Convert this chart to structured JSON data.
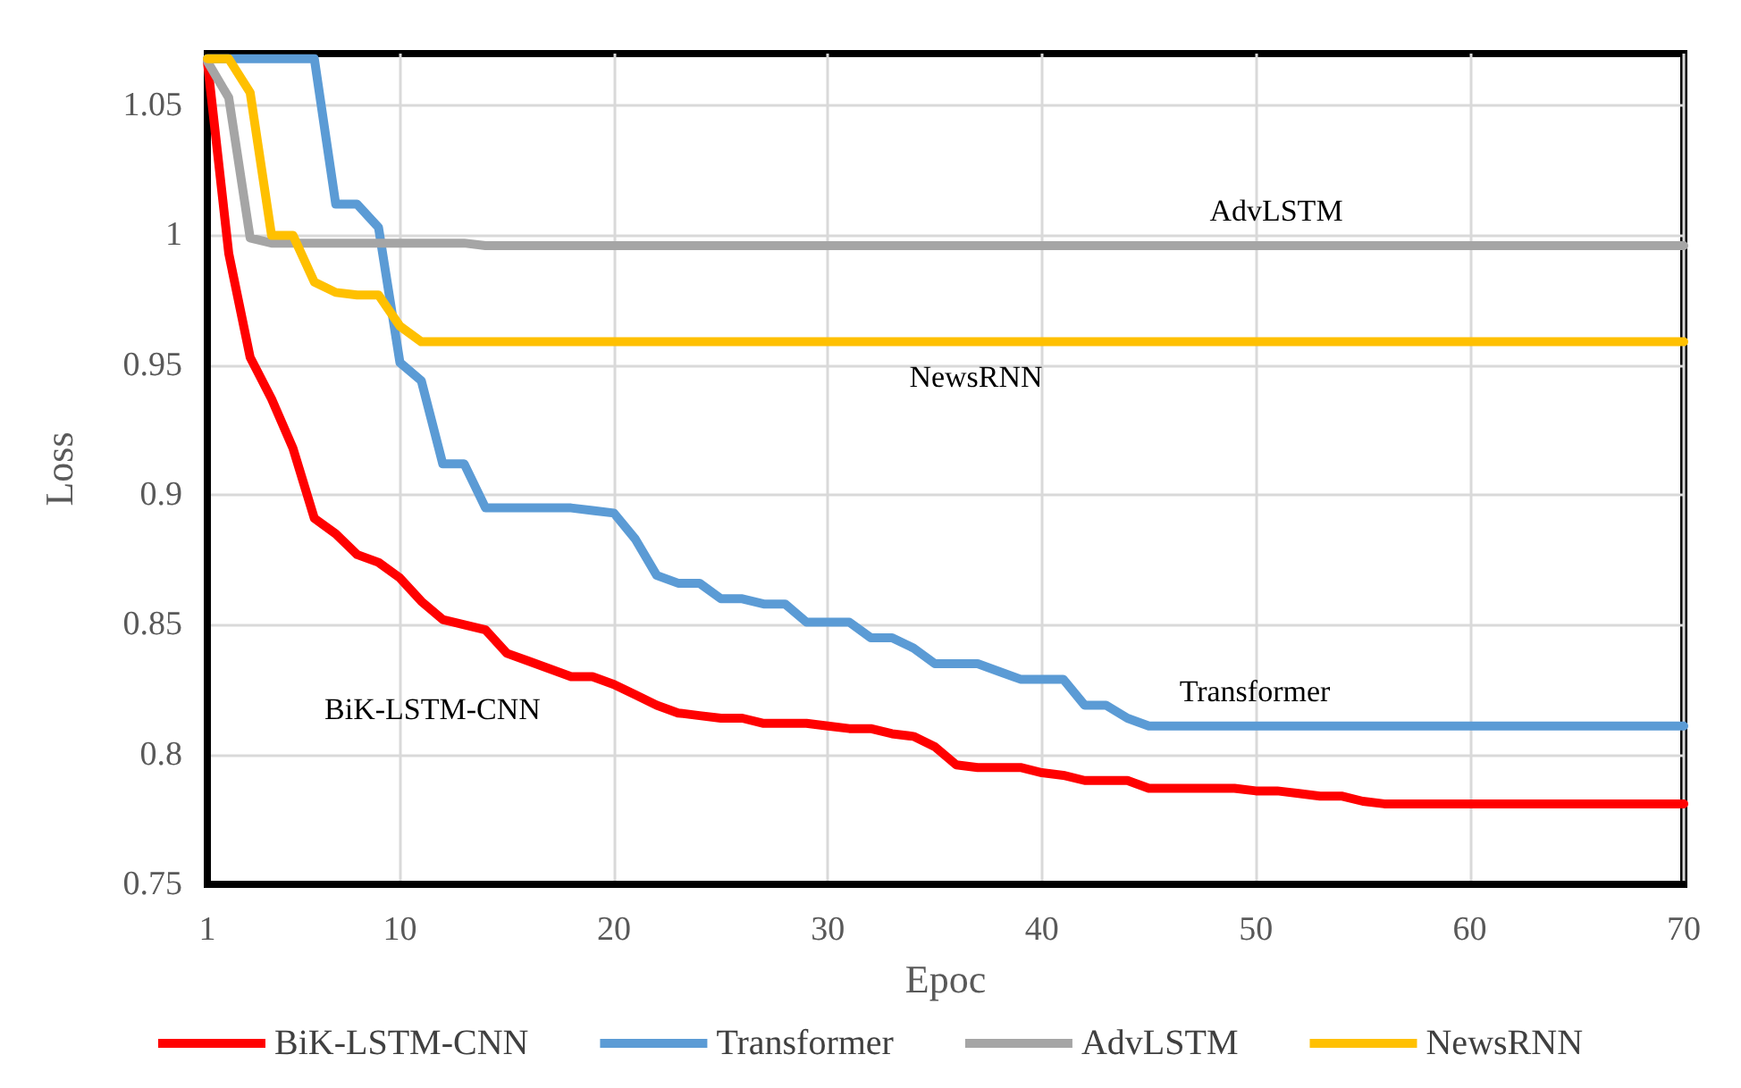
{
  "chart_data": {
    "type": "line",
    "xlabel": "Epoc",
    "ylabel": "Loss",
    "x": [
      1,
      2,
      3,
      4,
      5,
      6,
      7,
      8,
      9,
      10,
      11,
      12,
      13,
      14,
      15,
      16,
      17,
      18,
      19,
      20,
      21,
      22,
      23,
      24,
      25,
      26,
      27,
      28,
      29,
      30,
      31,
      32,
      33,
      34,
      35,
      36,
      37,
      38,
      39,
      40,
      41,
      42,
      43,
      44,
      45,
      46,
      47,
      48,
      49,
      50,
      51,
      52,
      53,
      54,
      55,
      56,
      57,
      58,
      59,
      60,
      61,
      62,
      63,
      64,
      65,
      66,
      67,
      68,
      69,
      70
    ],
    "series": [
      {
        "name": "BiK-LSTM-CNN",
        "color": "#ff0000",
        "values": [
          1.067,
          0.993,
          0.953,
          0.937,
          0.918,
          0.891,
          0.885,
          0.877,
          0.874,
          0.868,
          0.859,
          0.852,
          0.85,
          0.848,
          0.839,
          0.836,
          0.833,
          0.83,
          0.83,
          0.827,
          0.823,
          0.819,
          0.816,
          0.815,
          0.814,
          0.814,
          0.812,
          0.812,
          0.812,
          0.811,
          0.81,
          0.81,
          0.808,
          0.807,
          0.803,
          0.796,
          0.795,
          0.795,
          0.795,
          0.793,
          0.792,
          0.79,
          0.79,
          0.79,
          0.787,
          0.787,
          0.787,
          0.787,
          0.787,
          0.786,
          0.786,
          0.785,
          0.784,
          0.784,
          0.782,
          0.781,
          0.781,
          0.781,
          0.781,
          0.781,
          0.781,
          0.781,
          0.781,
          0.781,
          0.781,
          0.781,
          0.781,
          0.781,
          0.781,
          0.781
        ]
      },
      {
        "name": "Transformer",
        "color": "#5b9bd5",
        "values": [
          1.068,
          1.068,
          1.068,
          1.068,
          1.068,
          1.068,
          1.012,
          1.012,
          1.003,
          0.951,
          0.944,
          0.912,
          0.912,
          0.895,
          0.895,
          0.895,
          0.895,
          0.895,
          0.894,
          0.893,
          0.883,
          0.869,
          0.866,
          0.866,
          0.86,
          0.86,
          0.858,
          0.858,
          0.851,
          0.851,
          0.851,
          0.845,
          0.845,
          0.841,
          0.835,
          0.835,
          0.835,
          0.832,
          0.829,
          0.829,
          0.829,
          0.819,
          0.819,
          0.814,
          0.811,
          0.811,
          0.811,
          0.811,
          0.811,
          0.811,
          0.811,
          0.811,
          0.811,
          0.811,
          0.811,
          0.811,
          0.811,
          0.811,
          0.811,
          0.811,
          0.811,
          0.811,
          0.811,
          0.811,
          0.811,
          0.811,
          0.811,
          0.811,
          0.811,
          0.811
        ]
      },
      {
        "name": "AdvLSTM",
        "color": "#a5a5a5",
        "values": [
          1.067,
          1.053,
          0.999,
          0.997,
          0.997,
          0.997,
          0.997,
          0.997,
          0.997,
          0.997,
          0.997,
          0.997,
          0.997,
          0.996,
          0.996,
          0.996,
          0.996,
          0.996,
          0.996,
          0.996,
          0.996,
          0.996,
          0.996,
          0.996,
          0.996,
          0.996,
          0.996,
          0.996,
          0.996,
          0.996,
          0.996,
          0.996,
          0.996,
          0.996,
          0.996,
          0.996,
          0.996,
          0.996,
          0.996,
          0.996,
          0.996,
          0.996,
          0.996,
          0.996,
          0.996,
          0.996,
          0.996,
          0.996,
          0.996,
          0.996,
          0.996,
          0.996,
          0.996,
          0.996,
          0.996,
          0.996,
          0.996,
          0.996,
          0.996,
          0.996,
          0.996,
          0.996,
          0.996,
          0.996,
          0.996,
          0.996,
          0.996,
          0.996,
          0.996,
          0.996
        ]
      },
      {
        "name": "NewsRNN",
        "color": "#ffc000",
        "values": [
          1.068,
          1.068,
          1.055,
          1.0,
          1.0,
          0.982,
          0.978,
          0.977,
          0.977,
          0.965,
          0.959,
          0.959,
          0.959,
          0.959,
          0.959,
          0.959,
          0.959,
          0.959,
          0.959,
          0.959,
          0.959,
          0.959,
          0.959,
          0.959,
          0.959,
          0.959,
          0.959,
          0.959,
          0.959,
          0.959,
          0.959,
          0.959,
          0.959,
          0.959,
          0.959,
          0.959,
          0.959,
          0.959,
          0.959,
          0.959,
          0.959,
          0.959,
          0.959,
          0.959,
          0.959,
          0.959,
          0.959,
          0.959,
          0.959,
          0.959,
          0.959,
          0.959,
          0.959,
          0.959,
          0.959,
          0.959,
          0.959,
          0.959,
          0.959,
          0.959,
          0.959,
          0.959,
          0.959,
          0.959,
          0.959,
          0.959,
          0.959,
          0.959,
          0.959,
          0.959
        ]
      }
    ],
    "annotations": [
      "AdvLSTM",
      "NewsRNN",
      "Transformer",
      "BiK-LSTM-CNN"
    ],
    "xlim": [
      1,
      70
    ],
    "xticks": [
      1,
      10,
      20,
      30,
      40,
      50,
      60,
      70
    ],
    "ylim": [
      0.75,
      1.07
    ],
    "yticks": [
      0.75,
      0.8,
      0.85,
      0.9,
      0.95,
      1,
      1.05
    ],
    "grid": true,
    "legend": "bottom",
    "marker": "none",
    "line_style": "solid"
  }
}
